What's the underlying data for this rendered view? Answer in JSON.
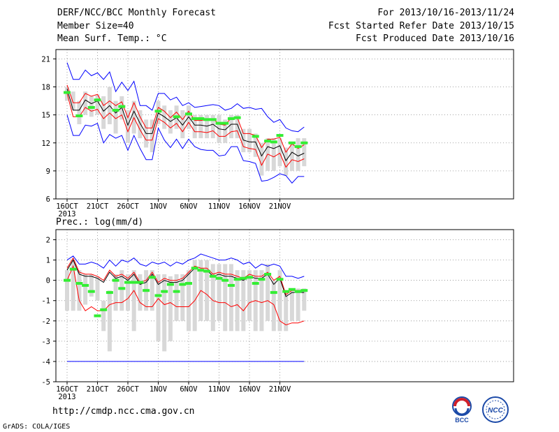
{
  "header": {
    "title": "DERF/NCC/BCC Monthly Forecast",
    "member": "Member Size=40",
    "variable": "Mean Surf. Temp.: °C",
    "period": "For 2013/10/16-2013/11/24",
    "started": "Fcst Started Refer Date 2013/10/15",
    "produced": "Fcst Produced Date 2013/10/16"
  },
  "footer": {
    "url": "http://cmdp.ncc.cma.gov.cn",
    "grads": "GrADS: COLA/IGES"
  },
  "logos": {
    "bcc": "BCC",
    "ncc": "NCC"
  },
  "colors": {
    "ensemble_mean": "#000000",
    "spread_band": "#ff0000",
    "extreme_range": "#0000ff",
    "observation": "#33ee33",
    "box": "#d8d8d8"
  },
  "chart_data": [
    {
      "type": "line",
      "title": "Mean Surf. Temp.: °C",
      "x_tick_labels": [
        "16OCT",
        "21OCT",
        "26OCT",
        "1NOV",
        "6NOV",
        "11NOV",
        "16NOV",
        "21NOV"
      ],
      "x_year_label": "2013",
      "ylim": [
        6,
        22
      ],
      "y_ticks": [
        6,
        9,
        12,
        15,
        18,
        21
      ],
      "grid": true,
      "series": [
        {
          "key": "max",
          "color": "#0000ff",
          "values": [
            20.6,
            18.8,
            18.8,
            19.8,
            19.2,
            19.5,
            18.8,
            19.6,
            17.5,
            18.5,
            17.6,
            18.6,
            16.0,
            16.0,
            15.5,
            17.3,
            17.3,
            16.6,
            16.9,
            16.0,
            16.3,
            15.8,
            15.9,
            16.0,
            16.1,
            16.0,
            15.5,
            15.7,
            16.2,
            15.7,
            15.8,
            15.6,
            15.7,
            14.8,
            14.2,
            14.5,
            13.6,
            13.3,
            13.2,
            13.7
          ]
        },
        {
          "key": "upper",
          "color": "#ff0000",
          "values": [
            18.2,
            16.3,
            16.3,
            17.3,
            17.0,
            17.2,
            16.0,
            16.5,
            16.0,
            16.4,
            14.7,
            16.3,
            14.8,
            13.6,
            13.6,
            15.8,
            15.4,
            14.7,
            15.3,
            14.5,
            15.4,
            14.4,
            14.4,
            14.5,
            14.6,
            14.0,
            13.9,
            14.7,
            14.7,
            13.0,
            13.0,
            12.8,
            11.5,
            12.4,
            12.4,
            12.6,
            11.0,
            11.9,
            11.4,
            11.8
          ]
        },
        {
          "key": "mean",
          "color": "#000000",
          "values": [
            17.8,
            15.5,
            15.5,
            16.6,
            16.2,
            16.5,
            15.4,
            16.0,
            15.2,
            15.8,
            13.9,
            15.4,
            14.1,
            13.0,
            13.0,
            15.2,
            14.8,
            14.3,
            14.7,
            13.9,
            14.8,
            13.9,
            13.9,
            13.8,
            14.0,
            13.5,
            13.4,
            14.0,
            14.0,
            12.3,
            12.1,
            12.1,
            10.6,
            11.6,
            11.4,
            11.7,
            10.1,
            11.0,
            10.6,
            10.9
          ]
        },
        {
          "key": "lower",
          "color": "#ff0000",
          "values": [
            17.3,
            14.8,
            14.8,
            15.8,
            15.4,
            15.6,
            14.6,
            15.2,
            14.6,
            15.0,
            13.2,
            14.7,
            13.4,
            12.3,
            12.3,
            14.6,
            14.2,
            13.6,
            14.1,
            13.2,
            14.2,
            13.2,
            13.2,
            13.1,
            13.3,
            12.7,
            12.7,
            13.2,
            13.3,
            11.6,
            11.4,
            11.3,
            9.6,
            10.8,
            10.5,
            10.9,
            9.4,
            10.2,
            10.0,
            10.3
          ]
        },
        {
          "key": "min",
          "color": "#0000ff",
          "values": [
            15.0,
            12.8,
            12.8,
            13.9,
            13.8,
            14.1,
            12.0,
            12.9,
            12.5,
            12.8,
            11.2,
            12.8,
            11.4,
            10.2,
            10.2,
            13.6,
            12.3,
            11.5,
            12.4,
            11.4,
            12.4,
            11.6,
            11.3,
            11.2,
            11.2,
            10.6,
            10.7,
            11.6,
            11.6,
            10.1,
            10.0,
            9.8,
            7.9,
            8.0,
            8.3,
            8.7,
            8.5,
            7.7,
            8.4,
            8.4
          ]
        }
      ],
      "observed": [
        17.4,
        null,
        14.9,
        null,
        15.8,
        16.6,
        null,
        null,
        15.5,
        15.9,
        null,
        null,
        null,
        null,
        null,
        15.4,
        null,
        null,
        14.8,
        null,
        15.1,
        14.6,
        14.6,
        14.5,
        14.5,
        14.1,
        14.1,
        14.6,
        14.7,
        null,
        null,
        12.7,
        null,
        12.2,
        12.1,
        12.8,
        null,
        12.0,
        11.6,
        12.0
      ],
      "boxes": [
        [
          16.5,
          18.0
        ],
        [
          15.5,
          17.5
        ],
        [
          14.0,
          16.5
        ],
        [
          15.0,
          17.5
        ],
        [
          14.8,
          17.0
        ],
        [
          15.0,
          17.2
        ],
        [
          13.5,
          17.0
        ],
        [
          14.0,
          18.0
        ],
        [
          13.0,
          16.5
        ],
        [
          14.5,
          17.0
        ],
        [
          12.0,
          15.5
        ],
        [
          13.0,
          16.5
        ],
        [
          12.5,
          15.5
        ],
        [
          11.5,
          14.5
        ],
        [
          11.0,
          14.5
        ],
        [
          14.0,
          16.5
        ],
        [
          13.5,
          16.0
        ],
        [
          13.0,
          15.5
        ],
        [
          13.5,
          16.0
        ],
        [
          12.5,
          15.5
        ],
        [
          13.5,
          16.0
        ],
        [
          12.5,
          15.0
        ],
        [
          12.5,
          15.0
        ],
        [
          12.5,
          15.0
        ],
        [
          12.5,
          15.0
        ],
        [
          12.0,
          15.0
        ],
        [
          12.0,
          14.5
        ],
        [
          12.5,
          15.0
        ],
        [
          12.5,
          15.0
        ],
        [
          11.0,
          13.5
        ],
        [
          11.0,
          13.5
        ],
        [
          10.5,
          13.0
        ],
        [
          8.5,
          12.0
        ],
        [
          9.0,
          12.5
        ],
        [
          9.0,
          12.5
        ],
        [
          9.5,
          12.5
        ],
        [
          8.5,
          11.5
        ],
        [
          9.0,
          12.0
        ],
        [
          9.0,
          12.5
        ],
        [
          9.5,
          12.5
        ]
      ]
    },
    {
      "type": "line",
      "title": "Prec.: log(mm/d)",
      "x_tick_labels": [
        "16OCT",
        "21OCT",
        "26OCT",
        "1NOV",
        "6NOV",
        "11NOV",
        "16NOV",
        "21NOV"
      ],
      "x_year_label": "2013",
      "ylim": [
        -5,
        2.5
      ],
      "y_ticks": [
        -5,
        -4,
        -3,
        -2,
        -1,
        0,
        1,
        2
      ],
      "grid": true,
      "series": [
        {
          "key": "max",
          "color": "#0000ff",
          "values": [
            1.0,
            1.2,
            0.8,
            0.8,
            0.9,
            0.8,
            0.6,
            1.0,
            0.7,
            1.0,
            0.9,
            1.1,
            0.8,
            0.7,
            0.9,
            0.8,
            0.9,
            0.7,
            0.9,
            0.8,
            1.0,
            1.1,
            1.3,
            1.2,
            1.1,
            1.0,
            1.0,
            1.1,
            1.0,
            0.8,
            0.9,
            0.6,
            0.8,
            0.7,
            0.8,
            0.7,
            0.2,
            0.2,
            0.1,
            0.2
          ]
        },
        {
          "key": "upper",
          "color": "#ff0000",
          "values": [
            0.6,
            1.1,
            0.4,
            0.3,
            0.3,
            0.2,
            0.0,
            0.5,
            0.2,
            0.3,
            0.1,
            0.4,
            -0.1,
            0.0,
            0.4,
            -0.1,
            0.1,
            0.0,
            0.0,
            0.1,
            0.4,
            0.7,
            0.6,
            0.6,
            0.3,
            0.4,
            0.3,
            0.3,
            0.2,
            0.1,
            0.3,
            0.2,
            0.2,
            0.4,
            0.0,
            0.2,
            -0.7,
            -0.5,
            -0.5,
            -0.5
          ]
        },
        {
          "key": "mean",
          "color": "#000000",
          "values": [
            0.5,
            1.0,
            0.3,
            0.2,
            0.2,
            0.1,
            -0.1,
            0.4,
            0.1,
            0.2,
            0.0,
            0.3,
            -0.2,
            -0.1,
            0.3,
            -0.2,
            0.0,
            -0.1,
            -0.1,
            0.0,
            0.3,
            0.6,
            0.5,
            0.5,
            0.2,
            0.3,
            0.2,
            0.2,
            0.1,
            0.0,
            0.2,
            0.1,
            0.1,
            0.3,
            -0.2,
            0.1,
            -0.8,
            -0.6,
            -0.6,
            -0.6
          ]
        },
        {
          "key": "lower",
          "color": "#ff0000",
          "values": [
            0.0,
            0.7,
            -1.0,
            -1.5,
            -1.3,
            -1.5,
            -1.5,
            -1.2,
            -1.1,
            -1.1,
            -0.9,
            -0.5,
            -1.1,
            -1.3,
            -1.3,
            -0.9,
            -1.2,
            -1.1,
            -1.3,
            -1.3,
            -1.3,
            -1.0,
            -0.5,
            -0.7,
            -1.0,
            -1.1,
            -1.1,
            -1.3,
            -1.2,
            -1.5,
            -1.1,
            -1.0,
            -1.1,
            -1.0,
            -1.2,
            -2.0,
            -2.2,
            -2.1,
            -2.1,
            -2.0
          ]
        },
        {
          "key": "min",
          "color": "#0000ff",
          "values": [
            -4,
            -4,
            -4,
            -4,
            -4,
            -4,
            -4,
            -4,
            -4,
            -4,
            -4,
            -4,
            -4,
            -4,
            -4,
            -4,
            -4,
            -4,
            -4,
            -4,
            -4,
            -4,
            -4,
            -4,
            -4,
            -4,
            -4,
            -4,
            -4,
            -4,
            -4,
            -4,
            -4,
            -4,
            -4,
            -4,
            -4,
            -4,
            -4,
            -4
          ]
        }
      ],
      "observed": [
        0.0,
        0.55,
        -0.15,
        -0.25,
        -0.55,
        -1.75,
        -1.45,
        -0.6,
        0.0,
        -0.4,
        -0.1,
        -0.1,
        -0.1,
        -0.5,
        0.15,
        -0.75,
        -0.55,
        -0.2,
        -0.55,
        -0.2,
        -0.15,
        0.6,
        0.5,
        0.45,
        0.2,
        0.1,
        0.0,
        -0.25,
        0.05,
        0.1,
        0.15,
        -0.15,
        0.05,
        0.3,
        -0.6,
        0.05,
        -0.55,
        -0.45,
        -0.55,
        -0.5
      ],
      "boxes": [
        [
          -1.5,
          0.5
        ],
        [
          -1.5,
          1.0
        ],
        [
          -1.5,
          0.5
        ],
        [
          -1.2,
          0.3
        ],
        [
          -0.8,
          0.3
        ],
        [
          -1.0,
          0.2
        ],
        [
          -2.5,
          -1.0
        ],
        [
          -3.5,
          -0.5
        ],
        [
          -1.5,
          0.3
        ],
        [
          -1.5,
          0.5
        ],
        [
          -1.5,
          0.3
        ],
        [
          -2.5,
          0.5
        ],
        [
          -1.5,
          0.3
        ],
        [
          -1.5,
          0.5
        ],
        [
          -1.5,
          0.5
        ],
        [
          -3.0,
          0.3
        ],
        [
          -3.5,
          0.3
        ],
        [
          -3.0,
          0.2
        ],
        [
          -2.0,
          0.3
        ],
        [
          -2.0,
          0.3
        ],
        [
          -2.5,
          0.5
        ],
        [
          -2.5,
          1.0
        ],
        [
          -2.0,
          1.0
        ],
        [
          -2.0,
          1.0
        ],
        [
          -2.5,
          0.8
        ],
        [
          -2.0,
          0.8
        ],
        [
          -2.5,
          0.8
        ],
        [
          -2.5,
          0.8
        ],
        [
          -2.5,
          0.5
        ],
        [
          -2.5,
          0.5
        ],
        [
          -2.0,
          0.5
        ],
        [
          -2.5,
          0.5
        ],
        [
          -2.5,
          0.5
        ],
        [
          -2.0,
          0.8
        ],
        [
          -2.5,
          0.0
        ],
        [
          -2.5,
          0.5
        ],
        [
          -2.5,
          -0.5
        ],
        [
          -2.0,
          -0.4
        ],
        [
          -2.0,
          -0.4
        ],
        [
          -1.5,
          -0.4
        ]
      ]
    }
  ]
}
